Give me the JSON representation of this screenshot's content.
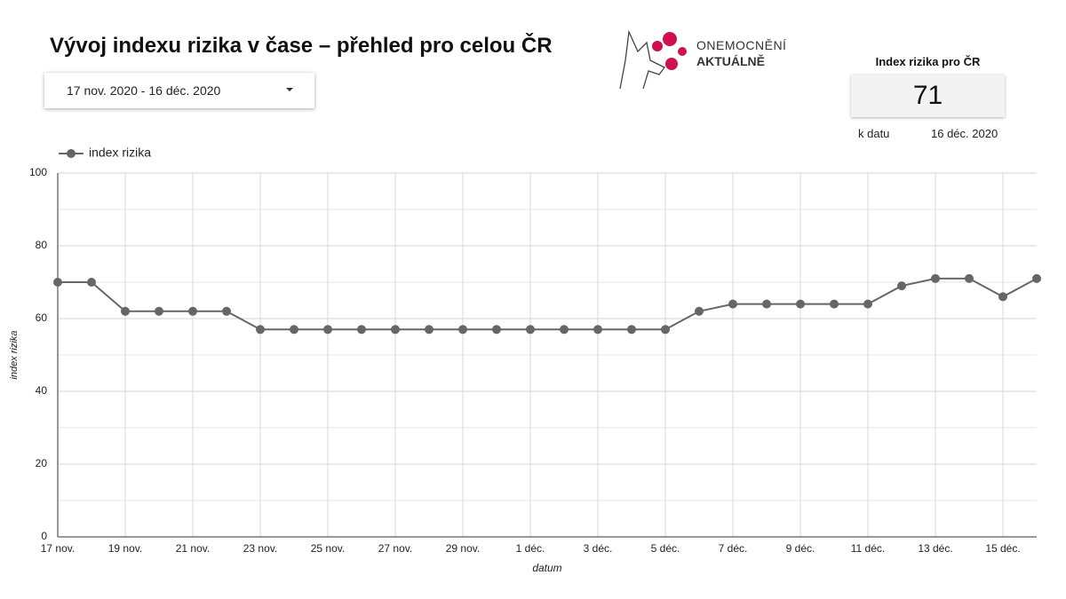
{
  "header": {
    "title": "Vývoj indexu rizika v čase – přehled pro celou ČR",
    "date_range": "17 nov. 2020 - 16 déc. 2020"
  },
  "logo": {
    "line1": "ONEMOCNĚNÍ",
    "line2": "AKTUÁLNĚ"
  },
  "scorecard": {
    "title": "Index rizika pro ČR",
    "value": 71,
    "date_label": "k datu",
    "date": "16 déc. 2020"
  },
  "chart_data": {
    "type": "line",
    "x_label": "datum",
    "y_label": "index rizika",
    "categories": [
      "17 nov.",
      null,
      "19 nov.",
      null,
      "21 nov.",
      null,
      "23 nov.",
      null,
      "25 nov.",
      null,
      "27 nov.",
      null,
      "29 nov.",
      null,
      "1 déc.",
      null,
      "3 déc.",
      null,
      "5 déc.",
      null,
      "7 déc.",
      null,
      "9 déc.",
      null,
      "11 déc.",
      null,
      "13 déc.",
      null,
      "15 déc.",
      null
    ],
    "series": [
      {
        "name": "index rizika",
        "color": "#666666",
        "values": [
          70,
          70,
          62,
          62,
          62,
          62,
          57,
          57,
          57,
          57,
          57,
          57,
          57,
          57,
          57,
          57,
          57,
          57,
          57,
          62,
          64,
          64,
          64,
          64,
          64,
          69,
          71,
          71,
          66,
          71
        ]
      }
    ],
    "ylim": [
      0,
      100
    ],
    "yticks": [
      0,
      20,
      40,
      60,
      80,
      100
    ],
    "yminorticks": [
      10,
      30,
      50,
      70,
      90
    ],
    "grid": true,
    "legend": "top-left"
  }
}
